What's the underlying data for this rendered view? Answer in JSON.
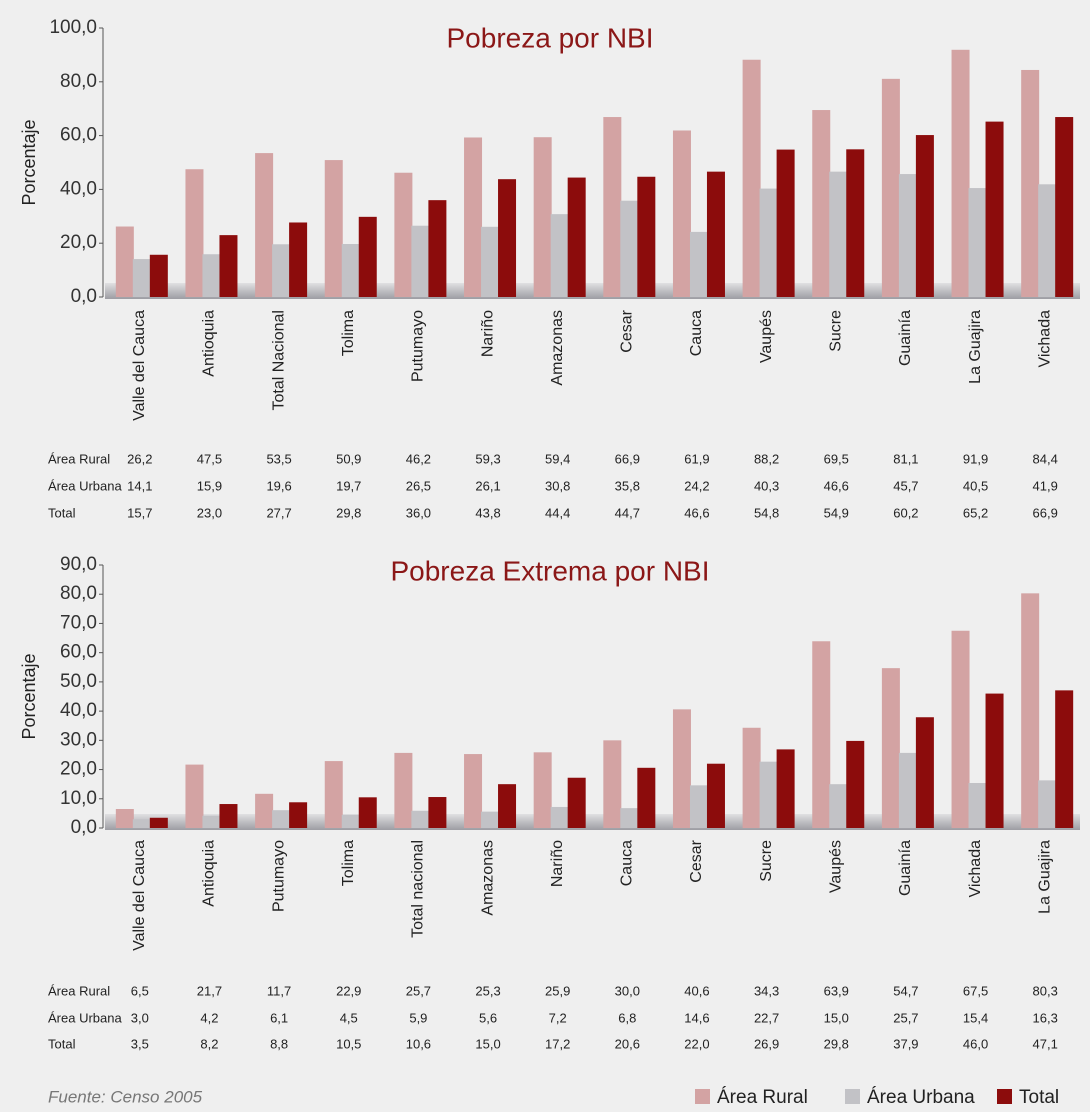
{
  "chart_data": [
    {
      "type": "bar",
      "title": "Pobreza por NBI",
      "ylabel": "Porcentaje",
      "categories": [
        "Valle del Cauca",
        "Antioquia",
        "Total Nacional",
        "Tolima",
        "Putumayo",
        "Nariño",
        "Amazonas",
        "Cesar",
        "Cauca",
        "Vaupés",
        "Sucre",
        "Guainía",
        "La Guajira",
        "Vichada"
      ],
      "series": [
        {
          "name": "Área Rural",
          "color": "#d3a3a3",
          "values": [
            26.2,
            47.5,
            53.5,
            50.9,
            46.2,
            59.3,
            59.4,
            66.9,
            61.9,
            88.2,
            69.5,
            81.1,
            91.9,
            84.4
          ],
          "value_labels": [
            "26,2",
            "47,5",
            "53,5",
            "50,9",
            "46,2",
            "59,3",
            "59,4",
            "66,9",
            "61,9",
            "88,2",
            "69,5",
            "81,1",
            "91,9",
            "84,4"
          ]
        },
        {
          "name": "Área Urbana",
          "color": "#c2c2c6",
          "values": [
            14.1,
            15.9,
            19.6,
            19.7,
            26.5,
            26.1,
            30.8,
            35.8,
            24.2,
            40.3,
            46.6,
            45.7,
            40.5,
            41.9
          ],
          "value_labels": [
            "14,1",
            "15,9",
            "19,6",
            "19,7",
            "26,5",
            "26,1",
            "30,8",
            "35,8",
            "24,2",
            "40,3",
            "46,6",
            "45,7",
            "40,5",
            "41,9"
          ]
        },
        {
          "name": "Total",
          "color": "#8c0c0c",
          "values": [
            15.7,
            23.0,
            27.7,
            29.8,
            36.0,
            43.8,
            44.4,
            44.7,
            46.6,
            54.8,
            54.9,
            60.2,
            65.2,
            66.9
          ],
          "value_labels": [
            "15,7",
            "23,0",
            "27,7",
            "29,8",
            "36,0",
            "43,8",
            "44,4",
            "44,7",
            "46,6",
            "54,8",
            "54,9",
            "60,2",
            "65,2",
            "66,9"
          ]
        }
      ],
      "ylim": [
        0,
        100
      ],
      "yticks": [
        {
          "value": 0,
          "label": "0,0"
        },
        {
          "value": 20,
          "label": "20,0"
        },
        {
          "value": 40,
          "label": "40,0"
        },
        {
          "value": 60,
          "label": "60,0"
        },
        {
          "value": 80,
          "label": "80,0"
        },
        {
          "value": 100,
          "label": "100,0"
        }
      ]
    },
    {
      "type": "bar",
      "title": "Pobreza Extrema por NBI",
      "ylabel": "Porcentaje",
      "categories": [
        "Valle del Cauca",
        "Antioquia",
        "Putumayo",
        "Tolima",
        "Total nacional",
        "Amazonas",
        "Nariño",
        "Cauca",
        "Cesar",
        "Sucre",
        "Vaupés",
        "Guainía",
        "Vichada",
        "La Guajira"
      ],
      "series": [
        {
          "name": "Área Rural",
          "color": "#d3a3a3",
          "values": [
            6.5,
            21.7,
            11.7,
            22.9,
            25.7,
            25.3,
            25.9,
            30.0,
            40.6,
            34.3,
            63.9,
            54.7,
            67.5,
            80.3
          ],
          "value_labels": [
            "6,5",
            "21,7",
            "11,7",
            "22,9",
            "25,7",
            "25,3",
            "25,9",
            "30,0",
            "40,6",
            "34,3",
            "63,9",
            "54,7",
            "67,5",
            "80,3"
          ]
        },
        {
          "name": "Área Urbana",
          "color": "#c2c2c6",
          "values": [
            3.0,
            4.2,
            6.1,
            4.5,
            5.9,
            5.6,
            7.2,
            6.8,
            14.6,
            22.7,
            15.0,
            25.7,
            15.4,
            16.3
          ],
          "value_labels": [
            "3,0",
            "4,2",
            "6,1",
            "4,5",
            "5,9",
            "5,6",
            "7,2",
            "6,8",
            "14,6",
            "22,7",
            "15,0",
            "25,7",
            "15,4",
            "16,3"
          ]
        },
        {
          "name": "Total",
          "color": "#8c0c0c",
          "values": [
            3.5,
            8.2,
            8.8,
            10.5,
            10.6,
            15.0,
            17.2,
            20.6,
            22.0,
            26.9,
            29.8,
            37.9,
            46.0,
            47.1
          ],
          "value_labels": [
            "3,5",
            "8,2",
            "8,8",
            "10,5",
            "10,6",
            "15,0",
            "17,2",
            "20,6",
            "22,0",
            "26,9",
            "29,8",
            "37,9",
            "46,0",
            "47,1"
          ]
        }
      ],
      "ylim": [
        0,
        90
      ],
      "yticks": [
        {
          "value": 0,
          "label": "0,0"
        },
        {
          "value": 10,
          "label": "10,0"
        },
        {
          "value": 20,
          "label": "20,0"
        },
        {
          "value": 30,
          "label": "30,0"
        },
        {
          "value": 40,
          "label": "40,0"
        },
        {
          "value": 50,
          "label": "50,0"
        },
        {
          "value": 60,
          "label": "60,0"
        },
        {
          "value": 70,
          "label": "70,0"
        },
        {
          "value": 80,
          "label": "80,0"
        },
        {
          "value": 90,
          "label": "90,0"
        }
      ]
    }
  ],
  "source": "Fuente: Censo 2005"
}
